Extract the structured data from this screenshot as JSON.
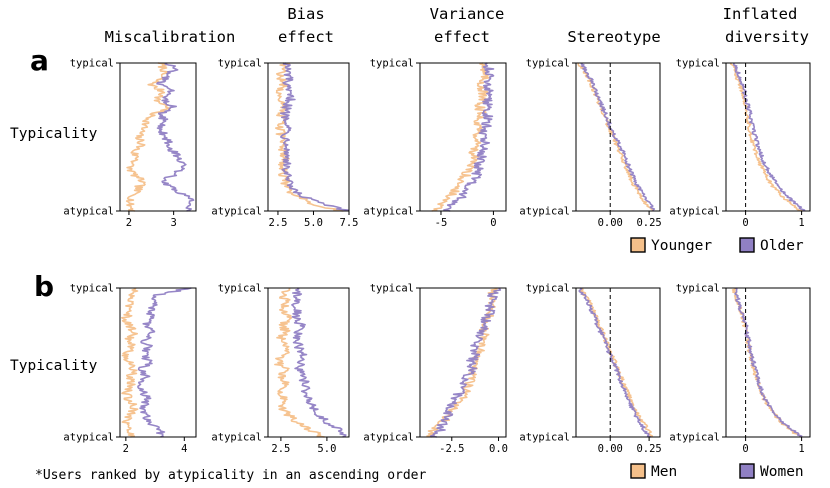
{
  "figure": {
    "column_titles": [
      [
        "Miscalibration"
      ],
      [
        "Bias",
        "effect"
      ],
      [
        "Variance",
        "effect"
      ],
      [
        "Stereotype"
      ],
      [
        "Inflated",
        "diversity"
      ]
    ],
    "row_ylabel": "Typicality",
    "ytick_top": "typical",
    "ytick_bottom": "atypical",
    "footnote": "*Users ranked by atypicality in an ascending order",
    "colors": {
      "orange": "#f5c08a",
      "purple": "#9080c4",
      "orange_border": "#000000"
    }
  },
  "chart_data": [
    {
      "panel": "a",
      "type": "line",
      "y_axis": "users ranked by atypicality (typical at top, atypical at bottom)",
      "legend": [
        "Younger",
        "Older"
      ],
      "subplots": [
        {
          "title": "Miscalibration",
          "xticks": [
            2,
            3
          ],
          "xlim": [
            1.8,
            3.5
          ],
          "series": [
            {
              "name": "Younger",
              "profile": [
                2.7,
                2.8,
                2.7,
                2.5,
                2.8,
                2.6,
                2.9,
                2.5,
                2.4,
                2.3,
                2.2,
                2.3,
                2.1,
                2.2,
                2.0,
                2.1,
                2.3,
                2.2,
                2.1,
                2.0,
                2.1
              ]
            },
            {
              "name": "Older",
              "profile": [
                2.9,
                3.0,
                2.8,
                2.7,
                3.0,
                2.8,
                3.0,
                2.7,
                2.8,
                2.7,
                2.8,
                2.9,
                3.0,
                3.1,
                3.2,
                3.0,
                2.8,
                3.0,
                3.3,
                3.4,
                3.3
              ]
            }
          ]
        },
        {
          "title": "Bias effect",
          "xticks": [
            2.5,
            5.0,
            7.5
          ],
          "xlim": [
            1.8,
            7.5
          ],
          "series": [
            {
              "name": "Younger",
              "profile": [
                3.0,
                2.8,
                2.7,
                2.9,
                2.6,
                2.8,
                3.0,
                2.7,
                2.9,
                2.6,
                2.8,
                2.7,
                2.9,
                3.0,
                2.8,
                2.9,
                3.0,
                3.2,
                3.8,
                5.0,
                6.8
              ]
            },
            {
              "name": "Older",
              "profile": [
                3.2,
                3.1,
                3.3,
                3.0,
                3.2,
                3.4,
                3.1,
                3.0,
                3.3,
                3.2,
                3.0,
                3.3,
                3.1,
                3.2,
                3.0,
                3.1,
                3.2,
                3.4,
                4.2,
                5.6,
                7.3
              ]
            }
          ]
        },
        {
          "title": "Variance effect",
          "xticks": [
            -5,
            0
          ],
          "xlim": [
            -7.0,
            1.2
          ],
          "series": [
            {
              "name": "Younger",
              "profile": [
                -0.8,
                -1.0,
                -0.9,
                -1.1,
                -1.0,
                -1.2,
                -1.3,
                -1.1,
                -1.4,
                -1.3,
                -1.5,
                -1.6,
                -1.8,
                -2.0,
                -2.2,
                -2.6,
                -3.0,
                -3.5,
                -4.2,
                -5.0,
                -5.6
              ]
            },
            {
              "name": "Older",
              "profile": [
                -0.4,
                -0.5,
                -0.3,
                -0.6,
                -0.4,
                -0.5,
                -0.7,
                -0.5,
                -0.6,
                -0.8,
                -0.9,
                -0.8,
                -1.0,
                -1.2,
                -1.4,
                -1.6,
                -1.9,
                -2.4,
                -3.0,
                -3.8,
                -4.6
              ]
            }
          ]
        },
        {
          "title": "Stereotype",
          "xticks": [
            0.0,
            0.25
          ],
          "xlim": [
            -0.22,
            0.32
          ],
          "vline": 0,
          "series": [
            {
              "name": "Younger",
              "profile": [
                -0.2,
                -0.17,
                -0.14,
                -0.12,
                -0.1,
                -0.08,
                -0.06,
                -0.04,
                -0.02,
                0.0,
                0.02,
                0.04,
                0.06,
                0.08,
                0.1,
                0.12,
                0.14,
                0.17,
                0.2,
                0.23,
                0.27
              ]
            },
            {
              "name": "Older",
              "profile": [
                -0.18,
                -0.16,
                -0.13,
                -0.11,
                -0.09,
                -0.07,
                -0.05,
                -0.03,
                -0.01,
                0.01,
                0.03,
                0.06,
                0.08,
                0.1,
                0.12,
                0.14,
                0.16,
                0.19,
                0.22,
                0.25,
                0.28
              ]
            }
          ]
        },
        {
          "title": "Inflated diversity",
          "xticks": [
            0,
            1
          ],
          "xlim": [
            -0.35,
            1.15
          ],
          "vline": 0,
          "series": [
            {
              "name": "Younger",
              "profile": [
                -0.25,
                -0.2,
                -0.15,
                -0.1,
                -0.05,
                -0.02,
                0.0,
                0.02,
                0.05,
                0.08,
                0.1,
                0.14,
                0.18,
                0.22,
                0.28,
                0.35,
                0.42,
                0.52,
                0.65,
                0.8,
                1.0
              ]
            },
            {
              "name": "Older",
              "profile": [
                -0.2,
                -0.15,
                -0.1,
                -0.06,
                -0.02,
                0.02,
                0.05,
                0.08,
                0.1,
                0.14,
                0.18,
                0.22,
                0.26,
                0.3,
                0.36,
                0.44,
                0.52,
                0.62,
                0.74,
                0.88,
                1.05
              ]
            }
          ]
        }
      ]
    },
    {
      "panel": "b",
      "type": "line",
      "y_axis": "users ranked by atypicality (typical at top, atypical at bottom)",
      "legend": [
        "Men",
        "Women"
      ],
      "subplots": [
        {
          "title": "Miscalibration",
          "xticks": [
            2,
            4
          ],
          "xlim": [
            1.8,
            4.4
          ],
          "series": [
            {
              "name": "Men",
              "profile": [
                2.3,
                2.2,
                2.1,
                2.2,
                2.0,
                2.1,
                2.3,
                2.1,
                2.2,
                2.0,
                2.1,
                2.3,
                2.1,
                2.2,
                2.0,
                2.1,
                2.3,
                2.2,
                2.0,
                2.1,
                2.2
              ]
            },
            {
              "name": "Women",
              "profile": [
                4.2,
                3.0,
                3.1,
                2.8,
                2.9,
                2.7,
                2.9,
                2.6,
                2.8,
                2.6,
                2.8,
                2.5,
                2.7,
                2.5,
                2.6,
                2.8,
                2.5,
                2.7,
                2.8,
                3.1,
                3.3
              ]
            }
          ]
        },
        {
          "title": "Bias effect",
          "xticks": [
            2.5,
            5.0
          ],
          "xlim": [
            1.8,
            6.2
          ],
          "series": [
            {
              "name": "Men",
              "profile": [
                2.9,
                2.6,
                2.8,
                2.5,
                2.9,
                2.6,
                2.8,
                2.4,
                2.9,
                2.6,
                2.3,
                2.8,
                2.5,
                2.9,
                2.4,
                2.7,
                2.5,
                2.9,
                3.3,
                4.0,
                4.8
              ]
            },
            {
              "name": "Women",
              "profile": [
                3.3,
                3.4,
                3.2,
                3.5,
                3.3,
                3.6,
                3.4,
                3.3,
                3.5,
                3.7,
                3.6,
                3.5,
                3.7,
                3.9,
                3.8,
                4.0,
                4.2,
                4.5,
                5.0,
                5.6,
                5.9
              ]
            }
          ]
        },
        {
          "title": "Variance effect",
          "xticks": [
            -2.5,
            0.0
          ],
          "xlim": [
            -4.2,
            0.4
          ],
          "series": [
            {
              "name": "Men",
              "profile": [
                -0.2,
                -0.4,
                -0.3,
                -0.6,
                -0.5,
                -0.8,
                -0.7,
                -1.0,
                -0.9,
                -1.2,
                -1.1,
                -1.4,
                -1.3,
                -1.6,
                -1.8,
                -2.0,
                -2.3,
                -2.6,
                -3.0,
                -3.4,
                -3.8
              ]
            },
            {
              "name": "Women",
              "profile": [
                -0.1,
                -0.3,
                -0.5,
                -0.4,
                -0.7,
                -0.6,
                -0.9,
                -1.1,
                -1.3,
                -1.2,
                -1.5,
                -1.4,
                -1.7,
                -1.9,
                -2.1,
                -2.3,
                -2.5,
                -2.7,
                -2.9,
                -3.1,
                -3.4
              ]
            }
          ]
        },
        {
          "title": "Stereotype",
          "xticks": [
            0.0,
            0.25
          ],
          "xlim": [
            -0.22,
            0.32
          ],
          "vline": 0,
          "series": [
            {
              "name": "Men",
              "profile": [
                -0.19,
                -0.16,
                -0.13,
                -0.11,
                -0.09,
                -0.07,
                -0.05,
                -0.03,
                -0.01,
                0.01,
                0.03,
                0.05,
                0.07,
                0.09,
                0.11,
                0.13,
                0.15,
                0.18,
                0.21,
                0.24,
                0.27
              ]
            },
            {
              "name": "Women",
              "profile": [
                -0.2,
                -0.17,
                -0.14,
                -0.12,
                -0.1,
                -0.08,
                -0.06,
                -0.04,
                -0.02,
                0.0,
                0.02,
                0.04,
                0.06,
                0.08,
                0.1,
                0.12,
                0.14,
                0.16,
                0.19,
                0.22,
                0.25
              ]
            }
          ]
        },
        {
          "title": "Inflated diversity",
          "xticks": [
            0,
            1
          ],
          "xlim": [
            -0.35,
            1.15
          ],
          "vline": 0,
          "series": [
            {
              "name": "Men",
              "profile": [
                -0.22,
                -0.18,
                -0.13,
                -0.09,
                -0.05,
                -0.02,
                0.0,
                0.03,
                0.06,
                0.09,
                0.12,
                0.15,
                0.19,
                0.23,
                0.28,
                0.34,
                0.42,
                0.52,
                0.64,
                0.78,
                0.98
              ]
            },
            {
              "name": "Women",
              "profile": [
                -0.2,
                -0.16,
                -0.12,
                -0.08,
                -0.04,
                0.0,
                0.02,
                0.05,
                0.08,
                0.11,
                0.14,
                0.17,
                0.21,
                0.25,
                0.3,
                0.36,
                0.44,
                0.54,
                0.66,
                0.82,
                1.02
              ]
            }
          ]
        }
      ]
    }
  ]
}
